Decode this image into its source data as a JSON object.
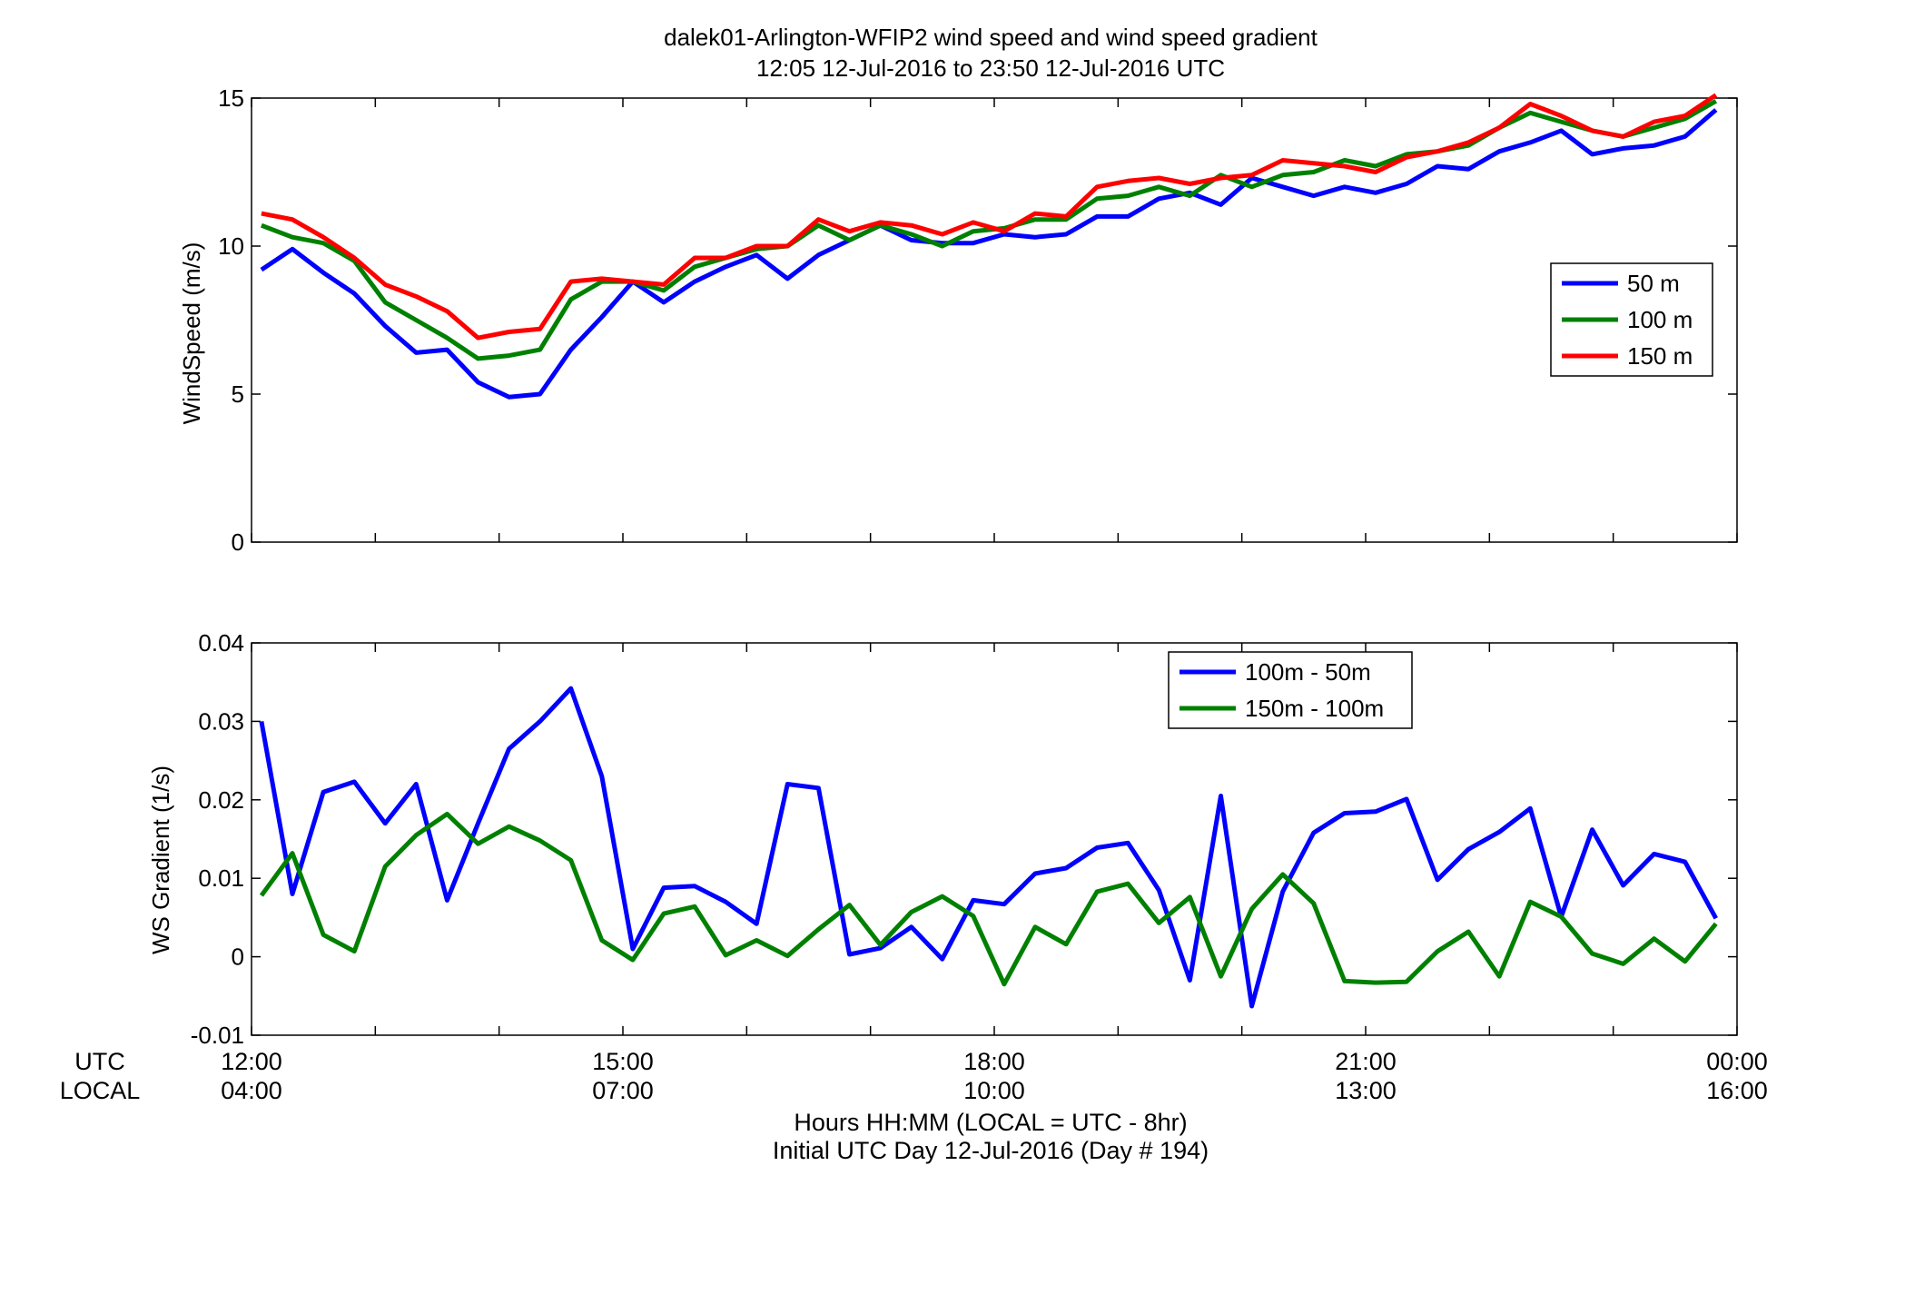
{
  "figure": {
    "title_line1": "dalek01-Arlington-WFIP2  wind speed and wind speed gradient",
    "title_line2": "12:05 12-Jul-2016 to 23:50 12-Jul-2016  UTC",
    "row_label_utc": "UTC",
    "row_label_local": "LOCAL",
    "xlabel_line1": "Hours HH:MM  (LOCAL = UTC - 8hr)",
    "xlabel_line2": "Initial UTC Day 12-Jul-2016 (Day # 194)",
    "x_ticks": [
      {
        "hours": 0,
        "utc": "12:00",
        "local": "04:00"
      },
      {
        "hours": 3,
        "utc": "15:00",
        "local": "07:00"
      },
      {
        "hours": 6,
        "utc": "18:00",
        "local": "10:00"
      },
      {
        "hours": 9,
        "utc": "21:00",
        "local": "13:00"
      },
      {
        "hours": 12,
        "utc": "00:00",
        "local": "16:00"
      }
    ],
    "x_minor_tick_hours": [
      1,
      2,
      4,
      5,
      7,
      8,
      10,
      11
    ]
  },
  "chart_data": [
    {
      "type": "line",
      "ylabel": "WindSpeed (m/s)",
      "xlim": [
        0,
        12
      ],
      "ylim": [
        0,
        15
      ],
      "y_ticks": [
        0,
        5,
        10,
        15
      ],
      "grid": false,
      "legend_position": "right",
      "x": [
        0.08,
        0.33,
        0.58,
        0.83,
        1.08,
        1.33,
        1.58,
        1.83,
        2.08,
        2.33,
        2.58,
        2.83,
        3.08,
        3.33,
        3.58,
        3.83,
        4.08,
        4.33,
        4.58,
        4.83,
        5.08,
        5.33,
        5.58,
        5.83,
        6.08,
        6.33,
        6.58,
        6.83,
        7.08,
        7.33,
        7.58,
        7.83,
        8.08,
        8.33,
        8.58,
        8.83,
        9.08,
        9.33,
        9.58,
        9.83,
        10.08,
        10.33,
        10.58,
        10.83,
        11.08,
        11.33,
        11.58,
        11.83
      ],
      "series": [
        {
          "name": "50 m",
          "color": "#0000ff",
          "values": [
            9.2,
            9.9,
            9.1,
            8.4,
            7.3,
            6.4,
            6.5,
            5.4,
            4.9,
            5.0,
            6.5,
            7.6,
            8.8,
            8.1,
            8.8,
            9.3,
            9.7,
            8.9,
            9.7,
            10.2,
            10.7,
            10.2,
            10.1,
            10.1,
            10.4,
            10.3,
            10.4,
            11.0,
            11.0,
            11.6,
            11.8,
            11.4,
            12.3,
            12.0,
            11.7,
            12.0,
            11.8,
            12.1,
            12.7,
            12.6,
            13.2,
            13.5,
            13.9,
            13.1,
            13.3,
            13.4,
            13.7,
            14.6
          ]
        },
        {
          "name": "100 m",
          "color": "#008000",
          "values": [
            10.7,
            10.3,
            10.1,
            9.5,
            8.1,
            7.5,
            6.9,
            6.2,
            6.3,
            6.5,
            8.2,
            8.8,
            8.8,
            8.5,
            9.3,
            9.6,
            9.9,
            10.0,
            10.7,
            10.2,
            10.7,
            10.4,
            10.0,
            10.5,
            10.6,
            10.9,
            10.9,
            11.6,
            11.7,
            12.0,
            11.7,
            12.4,
            12.0,
            12.4,
            12.5,
            12.9,
            12.7,
            13.1,
            13.2,
            13.4,
            14.0,
            14.5,
            14.2,
            13.9,
            13.7,
            14.0,
            14.3,
            14.9
          ]
        },
        {
          "name": "150 m",
          "color": "#ff0000",
          "values": [
            11.1,
            10.9,
            10.3,
            9.6,
            8.7,
            8.3,
            7.8,
            6.9,
            7.1,
            7.2,
            8.8,
            8.9,
            8.8,
            8.7,
            9.6,
            9.6,
            10.0,
            10.0,
            10.9,
            10.5,
            10.8,
            10.7,
            10.4,
            10.8,
            10.5,
            11.1,
            11.0,
            12.0,
            12.2,
            12.3,
            12.1,
            12.3,
            12.4,
            12.9,
            12.8,
            12.7,
            12.5,
            13.0,
            13.2,
            13.5,
            14.0,
            14.8,
            14.4,
            13.9,
            13.7,
            14.2,
            14.4,
            15.1
          ]
        }
      ]
    },
    {
      "type": "line",
      "ylabel": "WS Gradient (1/s)",
      "xlim": [
        0,
        12
      ],
      "ylim": [
        -0.01,
        0.04
      ],
      "y_ticks": [
        -0.01,
        0,
        0.01,
        0.02,
        0.03,
        0.04
      ],
      "y_tick_labels": [
        "-0.01",
        "0",
        "0.01",
        "0.02",
        "0.03",
        "0.04"
      ],
      "grid": false,
      "legend_position": "top-center",
      "x": [
        0.08,
        0.33,
        0.58,
        0.83,
        1.08,
        1.33,
        1.58,
        1.83,
        2.08,
        2.33,
        2.58,
        2.83,
        3.08,
        3.33,
        3.58,
        3.83,
        4.08,
        4.33,
        4.58,
        4.83,
        5.08,
        5.33,
        5.58,
        5.83,
        6.08,
        6.33,
        6.58,
        6.83,
        7.08,
        7.33,
        7.58,
        7.83,
        8.08,
        8.33,
        8.58,
        8.83,
        9.08,
        9.33,
        9.58,
        9.83,
        10.08,
        10.33,
        10.58,
        10.83,
        11.08,
        11.33,
        11.58,
        11.83
      ],
      "series": [
        {
          "name": "100m - 50m",
          "color": "#0000ff",
          "values": [
            0.03,
            0.008,
            0.021,
            0.0223,
            0.017,
            0.022,
            0.0072,
            0.017,
            0.0265,
            0.03,
            0.0342,
            0.023,
            0.001,
            0.0088,
            0.009,
            0.007,
            0.0042,
            0.022,
            0.0215,
            0.0003,
            0.0011,
            0.0038,
            -0.0003,
            0.0072,
            0.0067,
            0.0106,
            0.0113,
            0.0139,
            0.0145,
            0.0085,
            -0.003,
            0.0205,
            -0.0063,
            0.0083,
            0.0158,
            0.0183,
            0.0185,
            0.0201,
            0.0098,
            0.0137,
            0.0159,
            0.0189,
            0.0051,
            0.0162,
            0.0091,
            0.0131,
            0.0121,
            0.0049
          ]
        },
        {
          "name": "150m - 100m",
          "color": "#008000",
          "values": [
            0.0078,
            0.0132,
            0.0028,
            0.0007,
            0.0115,
            0.0155,
            0.0182,
            0.0144,
            0.0166,
            0.0148,
            0.0123,
            0.0021,
            -0.0004,
            0.0055,
            0.0064,
            0.0002,
            0.0021,
            0.0001,
            0.0035,
            0.0066,
            0.0015,
            0.0057,
            0.0077,
            0.0052,
            -0.0035,
            0.0038,
            0.0016,
            0.0083,
            0.0093,
            0.0043,
            0.0076,
            -0.0025,
            0.0061,
            0.0105,
            0.0068,
            -0.0031,
            -0.0033,
            -0.0032,
            0.0007,
            0.0032,
            -0.0025,
            0.007,
            0.0051,
            0.0004,
            -0.0009,
            0.0023,
            -0.0006,
            0.0042
          ]
        }
      ]
    }
  ]
}
